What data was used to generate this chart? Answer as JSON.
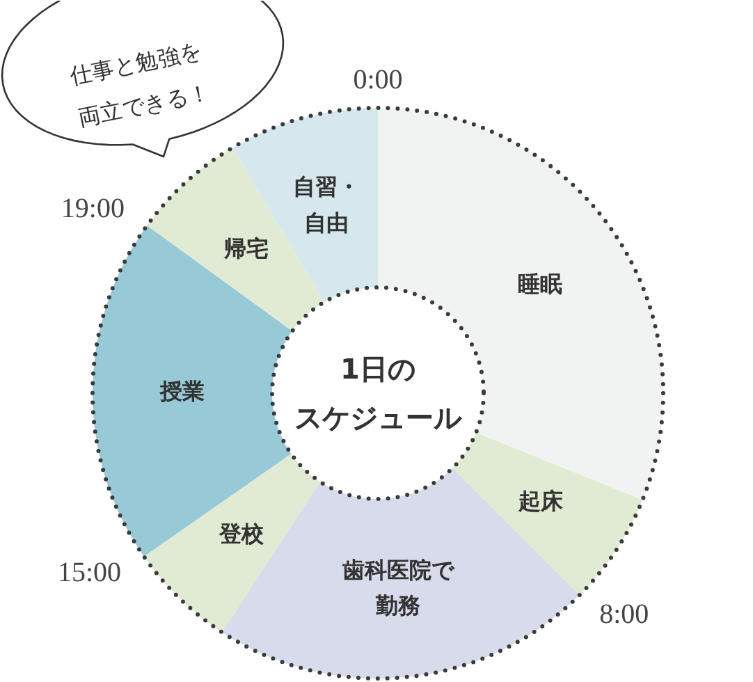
{
  "chart_data": {
    "type": "donut",
    "title": "1日のスケジュール",
    "categories": [
      "睡眠",
      "起床",
      "歯科医院で勤務",
      "登校",
      "授業",
      "帰宅",
      "自習・自由"
    ],
    "values": [
      31.1,
      6.4,
      21.7,
      6.1,
      19.7,
      6.5,
      8.5
    ],
    "colors": [
      "#f1f3f2",
      "#e1ead3",
      "#d8dbeb",
      "#e1ead3",
      "#98c9d7",
      "#e1ead3",
      "#d6e8ee"
    ],
    "annotations": [
      "仕事と勉強を両立できる！",
      "0:00",
      "8:00",
      "15:00",
      "19:00"
    ]
  }
}
